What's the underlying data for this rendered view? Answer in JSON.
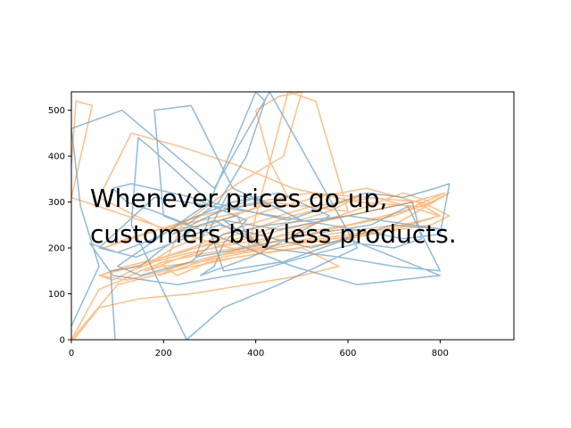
{
  "chart_data": {
    "type": "line",
    "title": "",
    "xlabel": "",
    "ylabel": "",
    "xlim": [
      0,
      960
    ],
    "ylim": [
      0,
      540
    ],
    "grid": false,
    "xticks": [
      "0",
      "200",
      "400",
      "600",
      "800"
    ],
    "yticks": [
      "0",
      "100",
      "200",
      "300",
      "400",
      "500"
    ],
    "annotation": {
      "line1": "Whenever prices go up,",
      "line2": "customers buy less products."
    },
    "series": [
      {
        "color": "#1f77b4",
        "alpha": 0.5,
        "x": [
          0,
          60,
          20,
          0,
          110,
          310,
          430,
          620,
          450,
          330,
          250,
          130,
          145,
          170,
          300,
          470,
          640,
          720,
          790,
          820,
          800,
          720,
          560,
          380,
          180,
          60,
          140,
          320,
          520,
          700,
          810,
          600,
          430,
          330,
          260,
          150,
          100,
          300,
          400,
          420,
          380,
          320,
          250,
          200,
          180,
          260,
          350,
          460,
          500,
          400,
          300,
          270,
          380,
          520,
          650,
          730,
          800,
          700,
          580,
          420,
          310,
          220,
          320,
          420,
          340,
          300,
          330,
          460,
          600,
          800,
          620,
          480,
          380,
          280,
          180,
          120,
          90,
          130,
          260,
          380,
          330,
          310,
          280,
          390,
          470,
          560,
          450,
          350,
          250,
          180,
          100,
          40,
          90,
          230,
          400,
          540,
          620,
          700,
          760,
          740,
          600,
          450,
          330,
          390,
          420,
          380,
          360,
          280,
          200,
          150,
          85,
          95
        ],
        "y": [
          30,
          160,
          290,
          460,
          500,
          330,
          540,
          200,
          120,
          70,
          0,
          250,
          440,
          420,
          300,
          260,
          320,
          310,
          330,
          340,
          230,
          220,
          250,
          280,
          310,
          200,
          180,
          250,
          200,
          250,
          240,
          270,
          250,
          230,
          170,
          140,
          160,
          300,
          540,
          520,
          400,
          300,
          250,
          270,
          500,
          510,
          330,
          280,
          260,
          310,
          270,
          180,
          200,
          230,
          250,
          290,
          150,
          160,
          180,
          200,
          260,
          230,
          280,
          300,
          320,
          240,
          150,
          170,
          220,
          140,
          120,
          160,
          200,
          240,
          280,
          300,
          330,
          340,
          310,
          260,
          210,
          160,
          140,
          180,
          220,
          270,
          320,
          300,
          260,
          220,
          190,
          210,
          140,
          120,
          150,
          190,
          210,
          200,
          220,
          300,
          270,
          240,
          260,
          220,
          200,
          230,
          270,
          250,
          200,
          160,
          150,
          0
        ]
      },
      {
        "color": "#ff7f0e",
        "alpha": 0.5,
        "x": [
          0,
          10,
          45,
          0,
          240,
          380,
          470,
          530,
          600,
          430,
          300,
          200,
          140,
          60,
          130,
          240,
          360,
          480,
          620,
          760,
          820,
          700,
          560,
          420,
          300,
          200,
          120,
          60,
          140,
          260,
          380,
          520,
          660,
          800,
          700,
          560,
          420,
          300,
          230,
          200,
          240,
          360,
          460,
          500,
          450,
          400,
          430,
          470,
          380,
          280,
          190,
          120,
          70,
          160,
          280,
          400,
          520,
          640,
          760,
          820,
          780,
          640,
          500,
          380,
          280,
          200,
          160,
          240,
          340,
          460,
          600,
          740,
          810,
          720,
          600,
          480,
          360,
          260,
          180,
          130,
          90,
          60,
          120,
          240,
          360,
          480,
          560,
          620,
          560,
          460,
          360,
          270,
          200,
          160,
          220,
          320,
          420,
          530,
          640,
          750,
          800,
          680,
          540,
          400,
          300,
          230,
          190,
          280,
          400,
          520,
          640,
          720,
          780,
          700,
          560,
          420,
          300,
          200,
          150,
          110,
          60,
          0,
          100,
          220,
          360,
          500,
          580,
          500,
          380,
          260,
          150,
          60,
          5
        ],
        "y": [
          380,
          520,
          510,
          310,
          230,
          190,
          540,
          520,
          280,
          300,
          250,
          240,
          270,
          310,
          450,
          420,
          380,
          330,
          300,
          290,
          320,
          250,
          230,
          200,
          180,
          150,
          130,
          140,
          160,
          200,
          250,
          290,
          310,
          270,
          240,
          210,
          190,
          170,
          140,
          160,
          250,
          340,
          400,
          540,
          530,
          500,
          390,
          310,
          280,
          260,
          240,
          220,
          200,
          230,
          270,
          300,
          320,
          310,
          300,
          270,
          250,
          230,
          210,
          190,
          170,
          160,
          150,
          180,
          210,
          240,
          270,
          300,
          320,
          280,
          250,
          230,
          210,
          190,
          170,
          150,
          130,
          140,
          160,
          190,
          230,
          270,
          290,
          310,
          280,
          250,
          220,
          200,
          180,
          160,
          200,
          240,
          280,
          310,
          330,
          300,
          270,
          240,
          220,
          200,
          180,
          160,
          140,
          170,
          210,
          250,
          290,
          320,
          300,
          270,
          240,
          210,
          190,
          170,
          150,
          130,
          110,
          0,
          120,
          150,
          180,
          200,
          160,
          140,
          120,
          100,
          90,
          70,
          0
        ]
      }
    ]
  }
}
